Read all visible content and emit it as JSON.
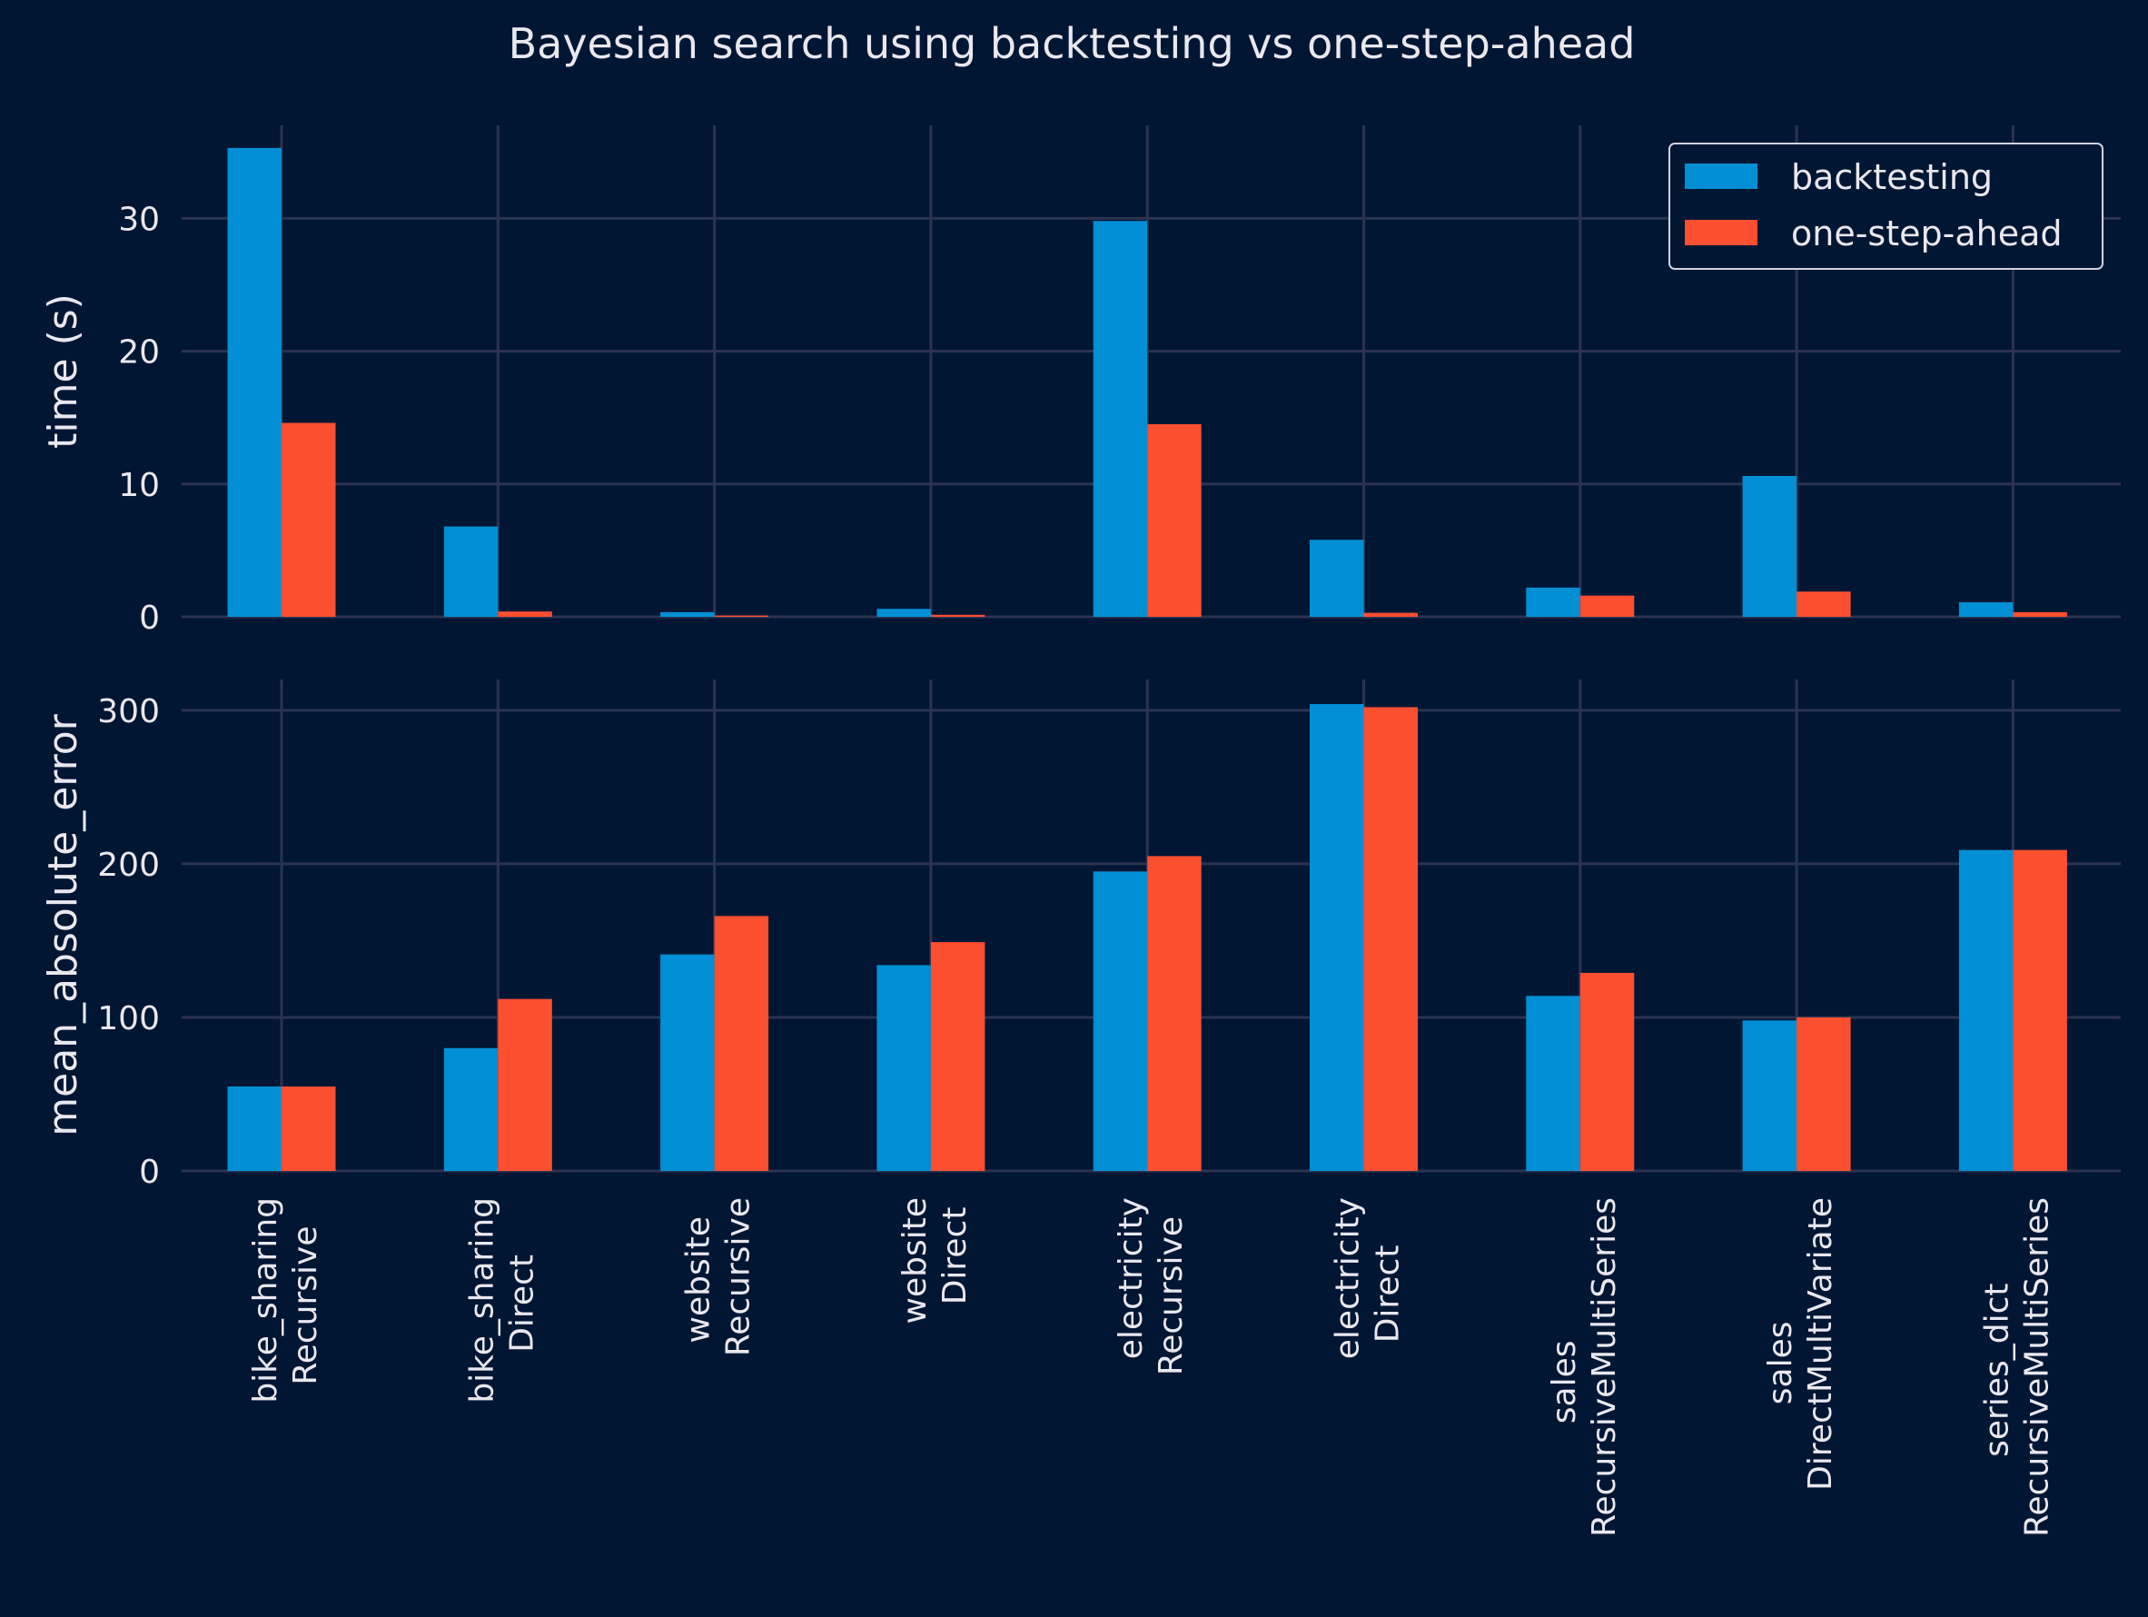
{
  "chart_data": {
    "type": "bar",
    "title": "Bayesian search using backtesting vs one-step-ahead",
    "categories": [
      [
        "bike_sharing",
        "Recursive"
      ],
      [
        "bike_sharing",
        "Direct"
      ],
      [
        "website",
        "Recursive"
      ],
      [
        "website",
        "Direct"
      ],
      [
        "electricity",
        "Recursive"
      ],
      [
        "electricity",
        "Direct"
      ],
      [
        "sales",
        "RecursiveMultiSeries"
      ],
      [
        "sales",
        "DirectMultiVariate"
      ],
      [
        "series_dict",
        "RecursiveMultiSeries"
      ]
    ],
    "legend": {
      "placement": "top-right",
      "entries": [
        "backtesting",
        "one-step-ahead"
      ]
    },
    "colors": {
      "backtesting": "#008fd5",
      "one-step-ahead": "#fc4f30",
      "background": "#001633",
      "grid": "#2b3350"
    },
    "grid": true,
    "panels": [
      {
        "ylabel": "time (s)",
        "ylim": [
          0,
          37
        ],
        "yticks": [
          0,
          10,
          20,
          30
        ],
        "series": [
          {
            "name": "backtesting",
            "values": [
              35.3,
              6.8,
              0.35,
              0.6,
              29.8,
              5.8,
              2.2,
              10.6,
              1.1
            ]
          },
          {
            "name": "one-step-ahead",
            "values": [
              14.6,
              0.4,
              0.1,
              0.15,
              14.5,
              0.3,
              1.6,
              1.9,
              0.35
            ]
          }
        ]
      },
      {
        "ylabel": "mean_absolute_error",
        "ylim": [
          0,
          320
        ],
        "yticks": [
          0,
          100,
          200,
          300
        ],
        "series": [
          {
            "name": "backtesting",
            "values": [
              55,
              80,
              141,
              134,
              195,
              304,
              114,
              98,
              209
            ]
          },
          {
            "name": "one-step-ahead",
            "values": [
              55,
              112,
              166,
              149,
              205,
              302,
              129,
              100,
              209
            ]
          }
        ]
      }
    ]
  }
}
